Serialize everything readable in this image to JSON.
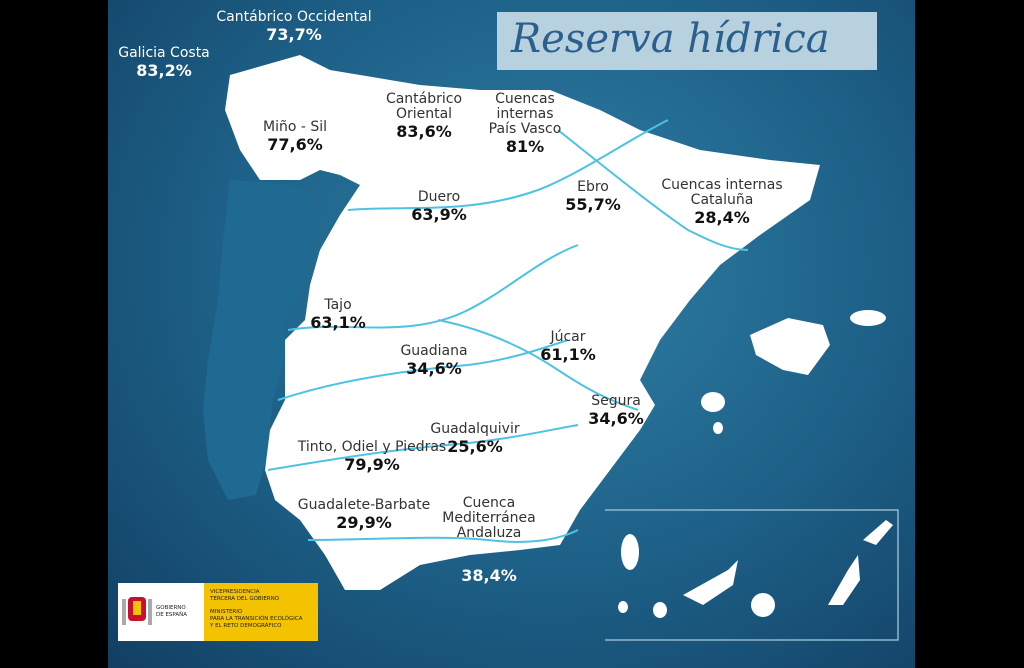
{
  "title": "Reserva hídrica",
  "basins": [
    {
      "name": [
        "Galicia Costa"
      ],
      "value": "83,2%"
    },
    {
      "name": [
        "Cantábrico Occidental"
      ],
      "value": "73,7%"
    },
    {
      "name": [
        "Miño - Sil"
      ],
      "value": "77,6%"
    },
    {
      "name": [
        "Cantábrico",
        "Oriental"
      ],
      "value": "83,6%"
    },
    {
      "name": [
        "Cuencas",
        "internas",
        "País Vasco"
      ],
      "value": "81%"
    },
    {
      "name": [
        "Duero"
      ],
      "value": "63,9%"
    },
    {
      "name": [
        "Ebro"
      ],
      "value": "55,7%"
    },
    {
      "name": [
        "Cuencas internas",
        "Cataluña"
      ],
      "value": "28,4%"
    },
    {
      "name": [
        "Tajo"
      ],
      "value": "63,1%"
    },
    {
      "name": [
        "Guadiana"
      ],
      "value": "34,6%"
    },
    {
      "name": [
        "Júcar"
      ],
      "value": "61,1%"
    },
    {
      "name": [
        "Segura"
      ],
      "value": "34,6%"
    },
    {
      "name": [
        "Guadalquivir"
      ],
      "value": "25,6%"
    },
    {
      "name": [
        "Tinto, Odiel y Piedras"
      ],
      "value": "79,9%"
    },
    {
      "name": [
        "Guadalete-Barbate"
      ],
      "value": "29,9%"
    },
    {
      "name": [
        "Cuenca",
        "Mediterránea",
        "Andaluza"
      ],
      "value": "38,4%"
    }
  ],
  "logo": {
    "government": [
      "GOBIERNO",
      "DE ESPAÑA"
    ],
    "vicepresidency": [
      "VICEPRESIDENCIA",
      "TERCERA DEL GOBIERNO"
    ],
    "ministry": [
      "MINISTERIO",
      "PARA LA TRANSICIÓN ECOLÓGICA",
      "Y EL RETO DEMOGRÁFICO"
    ]
  }
}
